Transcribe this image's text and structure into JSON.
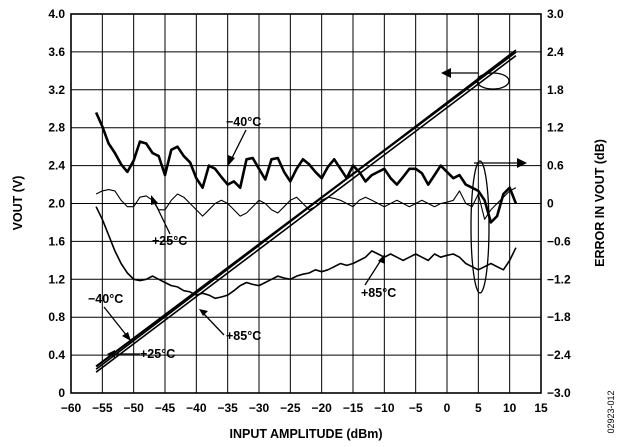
{
  "chart_data": {
    "type": "line",
    "xlabel": "INPUT AMPLITUDE (dBm)",
    "ylabel_left": "VOUT (V)",
    "ylabel_right": "ERROR IN VOUT (dB)",
    "figure_code": "02923-012",
    "xlim": [
      -60,
      15
    ],
    "ylim_left": [
      0,
      4.0
    ],
    "ylim_right": [
      -3.0,
      3.0
    ],
    "grid": true,
    "x_ticks": [
      "−60",
      "−55",
      "−50",
      "−45",
      "−40",
      "−35",
      "−30",
      "−25",
      "−20",
      "−15",
      "−10",
      "−5",
      "0",
      "5",
      "10",
      "15"
    ],
    "y_left_ticks": [
      "0",
      "0.4",
      "0.8",
      "1.2",
      "1.6",
      "2.0",
      "2.4",
      "2.8",
      "3.2",
      "3.6",
      "4.0"
    ],
    "y_right_ticks": [
      "−3.0",
      "−2.4",
      "−1.8",
      "−1.2",
      "−0.6",
      "0",
      "0.6",
      "1.2",
      "1.8",
      "2.4",
      "3.0"
    ],
    "annotations": {
      "neg40_error": "−40°C",
      "pos25_error": "+25°C",
      "pos85_error": "+85°C",
      "neg40_vout": "−40°C",
      "pos85_vout": "+85°C",
      "pos25_vout": "+25°C"
    },
    "series": [
      {
        "name": "−40°C",
        "axis": "left",
        "stroke": 2.2,
        "x": [
          -56,
          11
        ],
        "y": [
          0.28,
          3.6
        ]
      },
      {
        "name": "+25°C",
        "axis": "left",
        "stroke": 1.6,
        "x": [
          -56,
          11
        ],
        "y": [
          0.22,
          3.56
        ]
      },
      {
        "name": "+85°C",
        "axis": "left",
        "stroke": 1.6,
        "x": [
          -56,
          11
        ],
        "y": [
          0.25,
          3.62
        ]
      },
      {
        "name": "−40°C",
        "axis": "right",
        "stroke": 2.6,
        "x": [
          -56,
          -55,
          -54,
          -53,
          -52,
          -51,
          -50,
          -49,
          -48,
          -47,
          -46,
          -45,
          -44,
          -43,
          -42,
          -41,
          -40,
          -39,
          -38,
          -37,
          -36,
          -35,
          -34,
          -33,
          -32,
          -31,
          -30,
          -29,
          -28,
          -27,
          -26,
          -25,
          -24,
          -23,
          -22,
          -21,
          -20,
          -19,
          -18,
          -17,
          -16,
          -15,
          -14,
          -13,
          -12,
          -11,
          -10,
          -9,
          -8,
          -7,
          -6,
          -5,
          -4,
          -3,
          -2,
          -1,
          0,
          1,
          2,
          3,
          4,
          5,
          6,
          7,
          8,
          9,
          10,
          11
        ],
        "y": [
          1.44,
          1.22,
          0.95,
          0.8,
          0.62,
          0.5,
          0.68,
          0.98,
          0.95,
          0.8,
          0.75,
          0.45,
          0.85,
          0.9,
          0.75,
          0.65,
          0.4,
          0.25,
          0.6,
          0.55,
          0.42,
          0.3,
          0.35,
          0.25,
          0.7,
          0.72,
          0.55,
          0.38,
          0.7,
          0.72,
          0.5,
          0.35,
          0.55,
          0.7,
          0.62,
          0.5,
          0.4,
          0.58,
          0.7,
          0.55,
          0.4,
          0.6,
          0.5,
          0.35,
          0.45,
          0.5,
          0.55,
          0.4,
          0.3,
          0.42,
          0.55,
          0.55,
          0.48,
          0.3,
          0.45,
          0.6,
          0.5,
          0.4,
          0.45,
          0.3,
          0.25,
          0.2,
          0.05,
          -0.3,
          -0.2,
          0.15,
          0.25,
          0.0
        ]
      },
      {
        "name": "+25°C",
        "axis": "right",
        "stroke": 1.1,
        "x": [
          -56,
          -55,
          -54,
          -53,
          -52,
          -51,
          -50,
          -49,
          -48,
          -47,
          -46,
          -45,
          -44,
          -43,
          -42,
          -41,
          -40,
          -39,
          -38,
          -37,
          -36,
          -35,
          -34,
          -33,
          -32,
          -31,
          -30,
          -29,
          -28,
          -27,
          -26,
          -25,
          -24,
          -23,
          -22,
          -21,
          -20,
          -19,
          -18,
          -17,
          -16,
          -15,
          -14,
          -13,
          -12,
          -11,
          -10,
          -9,
          -8,
          -7,
          -6,
          -5,
          -4,
          -3,
          -2,
          -1,
          0,
          1,
          2,
          3,
          4,
          5,
          6,
          7,
          8,
          9,
          10,
          11
        ],
        "y": [
          0.15,
          0.2,
          0.22,
          0.2,
          0.05,
          -0.05,
          -0.05,
          0.1,
          0.12,
          0.05,
          -0.1,
          -0.1,
          0.05,
          0.15,
          0.1,
          0.0,
          -0.1,
          -0.2,
          -0.1,
          0.0,
          0.05,
          0.0,
          -0.1,
          -0.2,
          -0.15,
          -0.05,
          0.05,
          0.0,
          -0.1,
          -0.15,
          -0.05,
          0.05,
          0.1,
          0.0,
          -0.1,
          -0.05,
          0.05,
          0.1,
          0.08,
          0.05,
          0.0,
          -0.05,
          0.05,
          0.1,
          0.05,
          0.0,
          -0.05,
          0.0,
          0.05,
          0.0,
          -0.05,
          0.0,
          0.05,
          0.0,
          -0.05,
          0.0,
          0.02,
          0.05,
          0.2,
          0.0,
          -0.05,
          0.15,
          -0.25,
          -0.1,
          0.0,
          0.1,
          0.2,
          0.25
        ]
      },
      {
        "name": "+85°C",
        "axis": "right",
        "stroke": 1.6,
        "x": [
          -56,
          -55,
          -54,
          -53,
          -52,
          -51,
          -50,
          -49,
          -48,
          -47,
          -46,
          -45,
          -44,
          -43,
          -42,
          -41,
          -40,
          -39,
          -38,
          -37,
          -36,
          -35,
          -34,
          -33,
          -32,
          -31,
          -30,
          -29,
          -28,
          -27,
          -26,
          -25,
          -24,
          -23,
          -22,
          -21,
          -20,
          -19,
          -18,
          -17,
          -16,
          -15,
          -14,
          -13,
          -12,
          -11,
          -10,
          -9,
          -8,
          -7,
          -6,
          -5,
          -4,
          -3,
          -2,
          -1,
          0,
          1,
          2,
          3,
          4,
          5,
          6,
          7,
          8,
          9,
          10,
          11
        ],
        "y": [
          -0.05,
          -0.25,
          -0.5,
          -0.75,
          -0.95,
          -1.1,
          -1.2,
          -1.22,
          -1.2,
          -1.15,
          -1.2,
          -1.25,
          -1.3,
          -1.32,
          -1.38,
          -1.4,
          -1.45,
          -1.42,
          -1.45,
          -1.5,
          -1.48,
          -1.45,
          -1.38,
          -1.3,
          -1.25,
          -1.28,
          -1.3,
          -1.25,
          -1.2,
          -1.15,
          -1.18,
          -1.2,
          -1.15,
          -1.12,
          -1.1,
          -1.05,
          -1.08,
          -1.05,
          -1.0,
          -0.95,
          -0.98,
          -0.95,
          -0.9,
          -0.85,
          -0.75,
          -0.8,
          -0.85,
          -0.8,
          -0.85,
          -0.9,
          -0.85,
          -0.8,
          -0.85,
          -0.9,
          -0.8,
          -0.85,
          -0.82,
          -0.8,
          -0.85,
          -0.95,
          -1.0,
          -1.05,
          -1.0,
          -0.95,
          -1.0,
          -1.05,
          -0.9,
          -0.7
        ]
      }
    ]
  }
}
